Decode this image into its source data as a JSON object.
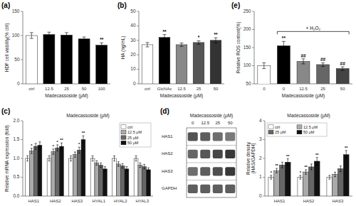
{
  "chart_data": [
    {
      "type": "bar",
      "title": "(a)",
      "categories": [
        "ctrl",
        "12.5",
        "25",
        "50",
        "100"
      ],
      "values": [
        100,
        102,
        101,
        93,
        80
      ],
      "errors": [
        6,
        5,
        5,
        4,
        5
      ],
      "colors": [
        "white",
        "black",
        "black",
        "black",
        "black"
      ],
      "annotations": [
        null,
        null,
        null,
        null,
        "**"
      ],
      "xlabel": "Madecassoside (μM)",
      "ylabel": "HDF cell viability(% ctrl)",
      "ylim": [
        0,
        150
      ],
      "yticks": [
        0,
        50,
        100,
        150
      ]
    },
    {
      "type": "bar",
      "title": "(b)",
      "categories": [
        "ctrl",
        "GlcNAc",
        "12.5",
        "25",
        "50"
      ],
      "values": [
        27,
        32,
        27,
        28.5,
        30
      ],
      "errors": [
        1.5,
        2,
        1.2,
        1.2,
        1.8
      ],
      "colors": [
        "white",
        "black",
        "#888888",
        "#555555",
        "#333333"
      ],
      "annotations": [
        null,
        "**",
        null,
        "*",
        "**"
      ],
      "xlabel": "Madecassoside (μM)",
      "ylabel": "HA (ng/mL)",
      "ylim": [
        0,
        50
      ],
      "yticks": [
        0,
        10,
        20,
        30,
        40,
        50
      ]
    },
    {
      "type": "bar",
      "title": "(e)",
      "categories": [
        "0",
        "0",
        "12.5",
        "25",
        "50"
      ],
      "values": [
        100,
        155,
        112,
        103,
        92
      ],
      "errors": [
        8,
        12,
        7,
        5,
        5
      ],
      "colors": [
        "white",
        "black",
        "#888888",
        "#666666",
        "#444444"
      ],
      "annotations": [
        null,
        "**",
        "##",
        "##",
        "##"
      ],
      "bracket": {
        "text": "+ H₂O₂",
        "from": 1,
        "to": 4
      },
      "xlabel": "Madecassoside (μM)",
      "ylabel": "Relative ROS content(%)",
      "ylim": [
        50,
        250
      ],
      "yticks": [
        50,
        100,
        150,
        200,
        250
      ]
    },
    {
      "type": "bar",
      "title": "(c)",
      "subtitle": "Madecassoside (μM)",
      "categories": [
        "HAS1",
        "HAS2",
        "HAS3",
        "HYAL1",
        "HYAL2",
        "HYAL3"
      ],
      "series": [
        {
          "name": "ctrl",
          "color": "white",
          "values": [
            1.0,
            1.0,
            1.0,
            1.0,
            1.0,
            1.0
          ],
          "errors": [
            0.07,
            0.07,
            0.07,
            0.07,
            0.07,
            0.07
          ]
        },
        {
          "name": "12.5 μM",
          "color": "#aaaaaa",
          "values": [
            1.2,
            1.18,
            1.1,
            0.88,
            0.85,
            0.82
          ],
          "errors": [
            0.07,
            0.07,
            0.07,
            0.06,
            0.06,
            0.06
          ],
          "annotations": [
            "*",
            "*",
            null,
            null,
            null,
            null
          ]
        },
        {
          "name": "25 μM",
          "color": "#666666",
          "values": [
            1.32,
            1.28,
            1.22,
            0.82,
            0.8,
            0.78
          ],
          "errors": [
            0.08,
            0.08,
            0.08,
            0.06,
            0.06,
            0.06
          ],
          "annotations": [
            null,
            "*",
            "*",
            null,
            null,
            null
          ]
        },
        {
          "name": "50 μM",
          "color": "#111111",
          "values": [
            1.35,
            1.32,
            1.5,
            0.72,
            0.72,
            0.7
          ],
          "errors": [
            0.09,
            0.09,
            0.1,
            0.06,
            0.06,
            0.05
          ],
          "annotations": [
            null,
            "**",
            "**",
            null,
            null,
            null
          ]
        }
      ],
      "ylabel": "Relative mRNA expression (fold)",
      "ylim": [
        0,
        2
      ],
      "yticks": [
        {
          "value": 0,
          "label": "0.0"
        },
        0.5,
        {
          "value": 1,
          "label": "1.0"
        },
        1.5,
        {
          "value": 2,
          "label": "2.0"
        }
      ],
      "legend": "upper right"
    },
    {
      "type": "heatmap",
      "title": "(d)",
      "subtitle": "Madecassoside (μM)",
      "x": [
        "0",
        "12.5",
        "25",
        "50"
      ],
      "y": [
        "HAS1",
        "HAS2",
        "HAS3",
        "GAPDH"
      ],
      "values": [
        [
          0.45,
          0.42,
          0.38,
          0.35
        ],
        [
          0.4,
          0.44,
          0.48,
          0.52
        ],
        [
          0.38,
          0.42,
          0.46,
          0.52
        ],
        [
          0.42,
          0.42,
          0.42,
          0.42
        ]
      ]
    },
    {
      "type": "bar",
      "subtitle": "Madecassoside (μM)",
      "categories": [
        "HAS1",
        "HAS2",
        "HAS3"
      ],
      "series": [
        {
          "name": "ctrl",
          "color": "white",
          "values": [
            1.0,
            1.0,
            1.0
          ],
          "errors": [
            0.1,
            0.1,
            0.1
          ],
          "annotations": [
            "*",
            "*",
            null
          ]
        },
        {
          "name": "12.5 μM",
          "color": "#aaaaaa",
          "values": [
            1.35,
            1.28,
            1.15
          ],
          "errors": [
            0.12,
            0.12,
            0.12
          ],
          "annotations": [
            "**",
            "**",
            null
          ]
        },
        {
          "name": "25 μM",
          "color": "#666666",
          "values": [
            1.65,
            1.55,
            1.45
          ],
          "errors": [
            0.15,
            0.15,
            0.15
          ]
        },
        {
          "name": "50 μM",
          "color": "#111111",
          "values": [
            1.8,
            1.85,
            2.2
          ],
          "errors": [
            0.18,
            0.2,
            0.22
          ],
          "annotations": [
            "**",
            "**",
            "**"
          ]
        }
      ],
      "ylabel": "Relative density\n(HAS/GAPDH)",
      "ylim": [
        0,
        4
      ],
      "yticks": [
        0,
        1,
        2,
        3,
        4
      ],
      "legend": "upper left"
    }
  ]
}
